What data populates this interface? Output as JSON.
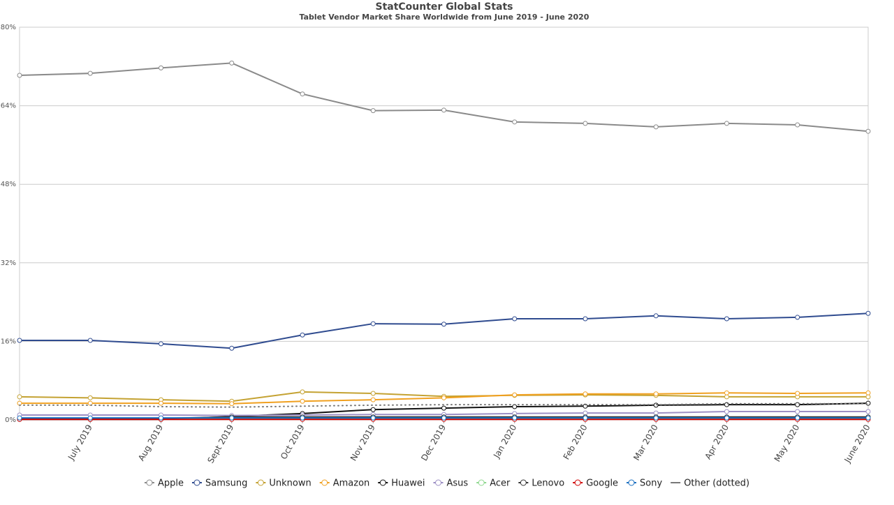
{
  "chart_data": {
    "type": "line",
    "title": "StatCounter Global Stats",
    "subtitle": "Tablet Vendor Market Share Worldwide from June 2019 - June 2020",
    "categories": [
      null,
      "July 2019",
      "Aug 2019",
      "Sept 2019",
      "Oct 2019",
      "Nov 2019",
      "Dec 2019",
      "Jan 2020",
      "Feb 2020",
      "Mar 2020",
      "Apr 2020",
      "May 2020",
      "June 2020"
    ],
    "ylim": [
      0,
      80
    ],
    "yticks": [
      {
        "value": 0,
        "label": "0%"
      },
      {
        "value": 16,
        "label": "16%"
      },
      {
        "value": 32,
        "label": "32%"
      },
      {
        "value": 48,
        "label": "48%"
      },
      {
        "value": 64,
        "label": "64%"
      },
      {
        "value": 80,
        "label": "80%"
      }
    ],
    "grid": true,
    "series": [
      {
        "name": "Apple",
        "color": "#8a8a8a",
        "values": [
          70.2,
          70.6,
          71.7,
          72.7,
          66.4,
          63.0,
          63.1,
          60.7,
          60.4,
          59.7,
          60.4,
          60.1,
          58.8
        ]
      },
      {
        "name": "Samsung",
        "color": "#2f4b8f",
        "values": [
          16.2,
          16.2,
          15.5,
          14.6,
          17.3,
          19.6,
          19.5,
          20.6,
          20.6,
          21.2,
          20.6,
          20.9,
          21.7
        ]
      },
      {
        "name": "Unknown",
        "color": "#c4a232",
        "values": [
          4.7,
          4.5,
          4.1,
          3.8,
          5.7,
          5.4,
          4.8,
          5.0,
          5.1,
          5.0,
          4.7,
          4.7,
          4.7
        ]
      },
      {
        "name": "Amazon",
        "color": "#f0a020",
        "values": [
          3.4,
          3.4,
          3.4,
          3.3,
          3.8,
          4.1,
          4.5,
          5.1,
          5.3,
          5.3,
          5.5,
          5.4,
          5.5
        ]
      },
      {
        "name": "Huawei",
        "color": "#111111",
        "values": [
          0.1,
          0.1,
          0.1,
          0.7,
          1.3,
          2.1,
          2.4,
          2.7,
          2.8,
          3.0,
          3.1,
          3.1,
          3.4
        ]
      },
      {
        "name": "Asus",
        "color": "#9c8fc4",
        "values": [
          1.0,
          1.0,
          1.0,
          0.9,
          1.0,
          1.1,
          1.1,
          1.3,
          1.4,
          1.4,
          1.7,
          1.7,
          1.7
        ]
      },
      {
        "name": "Acer",
        "color": "#8fd88f",
        "values": [
          0.3,
          0.3,
          0.3,
          0.3,
          0.3,
          0.3,
          0.3,
          0.3,
          0.3,
          0.3,
          0.3,
          0.3,
          0.3
        ]
      },
      {
        "name": "Lenovo",
        "color": "#333333",
        "values": [
          0.3,
          0.3,
          0.3,
          0.6,
          0.6,
          0.6,
          0.6,
          0.6,
          0.6,
          0.6,
          0.6,
          0.6,
          0.6
        ]
      },
      {
        "name": "Google",
        "color": "#d00000",
        "values": [
          0.1,
          0.1,
          0.1,
          0.1,
          0.1,
          0.1,
          0.1,
          0.1,
          0.1,
          0.1,
          0.1,
          0.1,
          0.1
        ]
      },
      {
        "name": "Sony",
        "color": "#1a6fc0",
        "values": [
          0.4,
          0.4,
          0.4,
          0.4,
          0.4,
          0.4,
          0.4,
          0.4,
          0.4,
          0.4,
          0.4,
          0.4,
          0.4
        ]
      },
      {
        "name": "Other (dotted)",
        "color": "#777777",
        "dotted": true,
        "values": [
          3.0,
          3.0,
          2.7,
          2.6,
          2.8,
          3.0,
          3.1,
          3.1,
          3.1,
          3.1,
          3.3,
          3.3,
          3.3
        ]
      }
    ]
  }
}
